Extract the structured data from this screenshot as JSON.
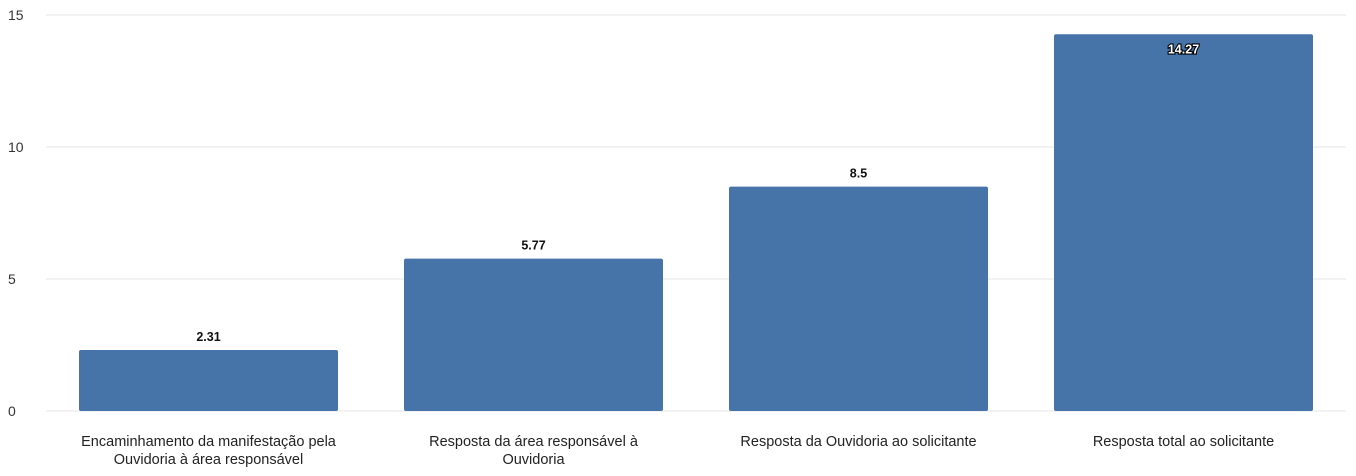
{
  "chart_data": {
    "type": "bar",
    "categories": [
      [
        "Encaminhamento da manifestação pela",
        "Ouvidoria à área responsável"
      ],
      [
        "Resposta da área responsável à",
        "Ouvidoria"
      ],
      [
        "Resposta da Ouvidoria ao solicitante"
      ],
      [
        "Resposta total ao solicitante"
      ]
    ],
    "values": [
      2.31,
      5.77,
      8.5,
      14.27
    ],
    "value_labels": [
      "2.31",
      "5.77",
      "8.5",
      "14.27"
    ],
    "ylim": [
      0,
      15
    ],
    "yticks": [
      0,
      5,
      10,
      15
    ],
    "ytick_labels": [
      "0",
      "5",
      "10",
      "15"
    ],
    "grid": true,
    "bar_color": "#4673a8",
    "title": "",
    "xlabel": "",
    "ylabel": ""
  }
}
